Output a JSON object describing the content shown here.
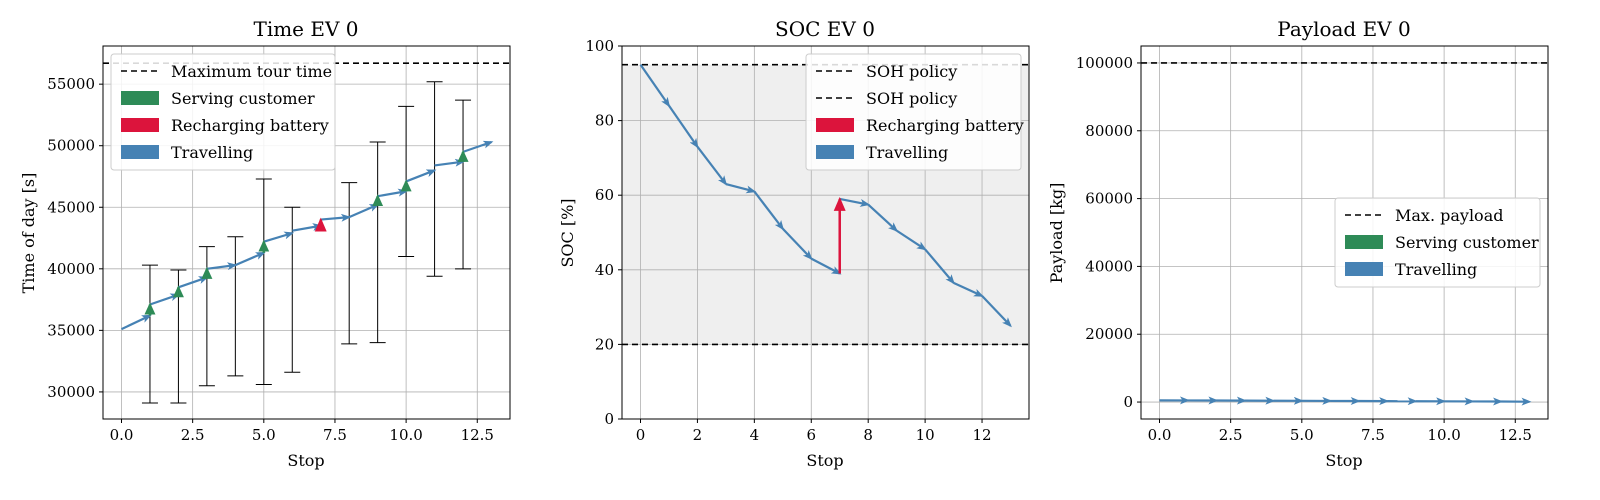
{
  "colors": {
    "serving": "#2e8b57",
    "recharging": "#dc143c",
    "travelling": "#4682b4",
    "soc_band": "#efefef"
  },
  "chart_data": [
    {
      "id": "time",
      "type": "line",
      "title": "Time EV 0",
      "xlabel": "Stop",
      "ylabel": "Time of day [s]",
      "xlim": [
        -0.65,
        13.65
      ],
      "ylim": [
        27800,
        58100
      ],
      "xticks": [
        0,
        2.5,
        5,
        7.5,
        10,
        12.5
      ],
      "xtick_labels": [
        "0.0",
        "2.5",
        "5.0",
        "7.5",
        "10.0",
        "12.5"
      ],
      "yticks": [
        30000,
        35000,
        40000,
        45000,
        50000,
        55000
      ],
      "ytick_labels": [
        "30000",
        "35000",
        "40000",
        "45000",
        "50000",
        "55000"
      ],
      "legend_position": "top-left",
      "hlines": [
        {
          "y": 56700,
          "label": "Maximum tour time"
        }
      ],
      "legend": [
        {
          "label": "Maximum tour time",
          "kind": "dash"
        },
        {
          "label": "Serving customer",
          "kind": "serving"
        },
        {
          "label": "Recharging battery",
          "kind": "recharging"
        },
        {
          "label": "Travelling",
          "kind": "travelling"
        }
      ],
      "travel_segments": [
        [
          0,
          35100,
          1,
          36200
        ],
        [
          1,
          37100,
          2,
          37900
        ],
        [
          2,
          38500,
          3,
          39300
        ],
        [
          3,
          40000,
          4,
          40300
        ],
        [
          4,
          40300,
          5,
          41300
        ],
        [
          5,
          42200,
          6,
          42900
        ],
        [
          6,
          43100,
          7,
          43500
        ],
        [
          7,
          44000,
          8,
          44200
        ],
        [
          8,
          44200,
          9,
          45200
        ],
        [
          9,
          45900,
          10,
          46300
        ],
        [
          10,
          47100,
          11,
          48000
        ],
        [
          11,
          48400,
          12,
          48700
        ],
        [
          12,
          49500,
          13,
          50300
        ]
      ],
      "serving_events": [
        [
          1,
          36200,
          37100
        ],
        [
          2,
          37900,
          38500
        ],
        [
          3,
          39300,
          40000
        ],
        [
          5,
          41300,
          42200
        ],
        [
          9,
          45200,
          45900
        ],
        [
          10,
          46300,
          47100
        ],
        [
          12,
          48700,
          49500
        ]
      ],
      "recharging_events": [
        [
          7,
          43500,
          44000
        ]
      ],
      "time_windows": [
        [
          1,
          29100,
          40300
        ],
        [
          2,
          29100,
          39900
        ],
        [
          3,
          30500,
          41800
        ],
        [
          4,
          31300,
          42600
        ],
        [
          5,
          30600,
          47300
        ],
        [
          6,
          31600,
          45000
        ],
        [
          8,
          33900,
          47000
        ],
        [
          9,
          34000,
          50300
        ],
        [
          10,
          41000,
          53200
        ],
        [
          11,
          39400,
          55200
        ],
        [
          12,
          40000,
          53700
        ]
      ]
    },
    {
      "id": "soc",
      "type": "line",
      "title": "SOC EV 0",
      "xlabel": "Stop",
      "ylabel": "SOC [%]",
      "xlim": [
        -0.65,
        13.65
      ],
      "ylim": [
        0,
        100
      ],
      "xticks": [
        0,
        2,
        4,
        6,
        8,
        10,
        12
      ],
      "xtick_labels": [
        "0",
        "2",
        "4",
        "6",
        "8",
        "10",
        "12"
      ],
      "yticks": [
        0,
        20,
        40,
        60,
        80,
        100
      ],
      "ytick_labels": [
        "0",
        "20",
        "40",
        "60",
        "80",
        "100"
      ],
      "legend_position": "top-right",
      "band": [
        20,
        95
      ],
      "hlines": [
        {
          "y": 95,
          "label": "SOH policy"
        },
        {
          "y": 20,
          "label": "SOH policy"
        }
      ],
      "legend": [
        {
          "label": "SOH policy",
          "kind": "dash"
        },
        {
          "label": "SOH policy",
          "kind": "dash"
        },
        {
          "label": "Recharging battery",
          "kind": "recharging"
        },
        {
          "label": "Travelling",
          "kind": "travelling"
        }
      ],
      "travel_segments": [
        [
          0,
          95,
          1,
          84
        ],
        [
          1,
          84,
          2,
          73
        ],
        [
          2,
          73,
          3,
          63
        ],
        [
          3,
          63,
          4,
          61
        ],
        [
          4,
          61,
          5,
          51
        ],
        [
          5,
          51,
          6,
          43
        ],
        [
          6,
          43,
          7,
          39
        ],
        [
          7,
          59,
          8,
          57.5
        ],
        [
          8,
          57.5,
          9,
          50.5
        ],
        [
          9,
          50.5,
          10,
          45.5
        ],
        [
          10,
          45.5,
          11,
          36.5
        ],
        [
          11,
          36.5,
          12,
          33
        ],
        [
          12,
          33,
          13,
          25
        ]
      ],
      "recharging_events": [
        [
          7,
          39,
          59
        ]
      ]
    },
    {
      "id": "payload",
      "type": "line",
      "title": "Payload EV 0",
      "xlabel": "Stop",
      "ylabel": "Payload [kg]",
      "xlim": [
        -0.65,
        13.65
      ],
      "ylim": [
        -5000,
        105000
      ],
      "xticks": [
        0,
        2.5,
        5,
        7.5,
        10,
        12.5
      ],
      "xtick_labels": [
        "0.0",
        "2.5",
        "5.0",
        "7.5",
        "10.0",
        "12.5"
      ],
      "yticks": [
        0,
        20000,
        40000,
        60000,
        80000,
        100000
      ],
      "ytick_labels": [
        "0",
        "20000",
        "40000",
        "60000",
        "80000",
        "100000"
      ],
      "legend_position": "center-right",
      "hlines": [
        {
          "y": 100000,
          "label": "Max. payload"
        }
      ],
      "legend": [
        {
          "label": "Max. payload",
          "kind": "dash"
        },
        {
          "label": "Serving customer",
          "kind": "serving"
        },
        {
          "label": "Travelling",
          "kind": "travelling"
        }
      ],
      "travel_segments": [
        [
          0,
          500,
          1,
          480
        ],
        [
          1,
          480,
          2,
          450
        ],
        [
          2,
          450,
          3,
          420
        ],
        [
          3,
          420,
          4,
          390
        ],
        [
          4,
          390,
          5,
          360
        ],
        [
          5,
          360,
          6,
          330
        ],
        [
          6,
          330,
          7,
          300
        ],
        [
          7,
          300,
          8,
          270
        ],
        [
          8,
          270,
          9,
          240
        ],
        [
          9,
          240,
          10,
          210
        ],
        [
          10,
          210,
          11,
          180
        ],
        [
          11,
          180,
          12,
          150
        ],
        [
          12,
          150,
          13,
          100
        ]
      ]
    }
  ]
}
